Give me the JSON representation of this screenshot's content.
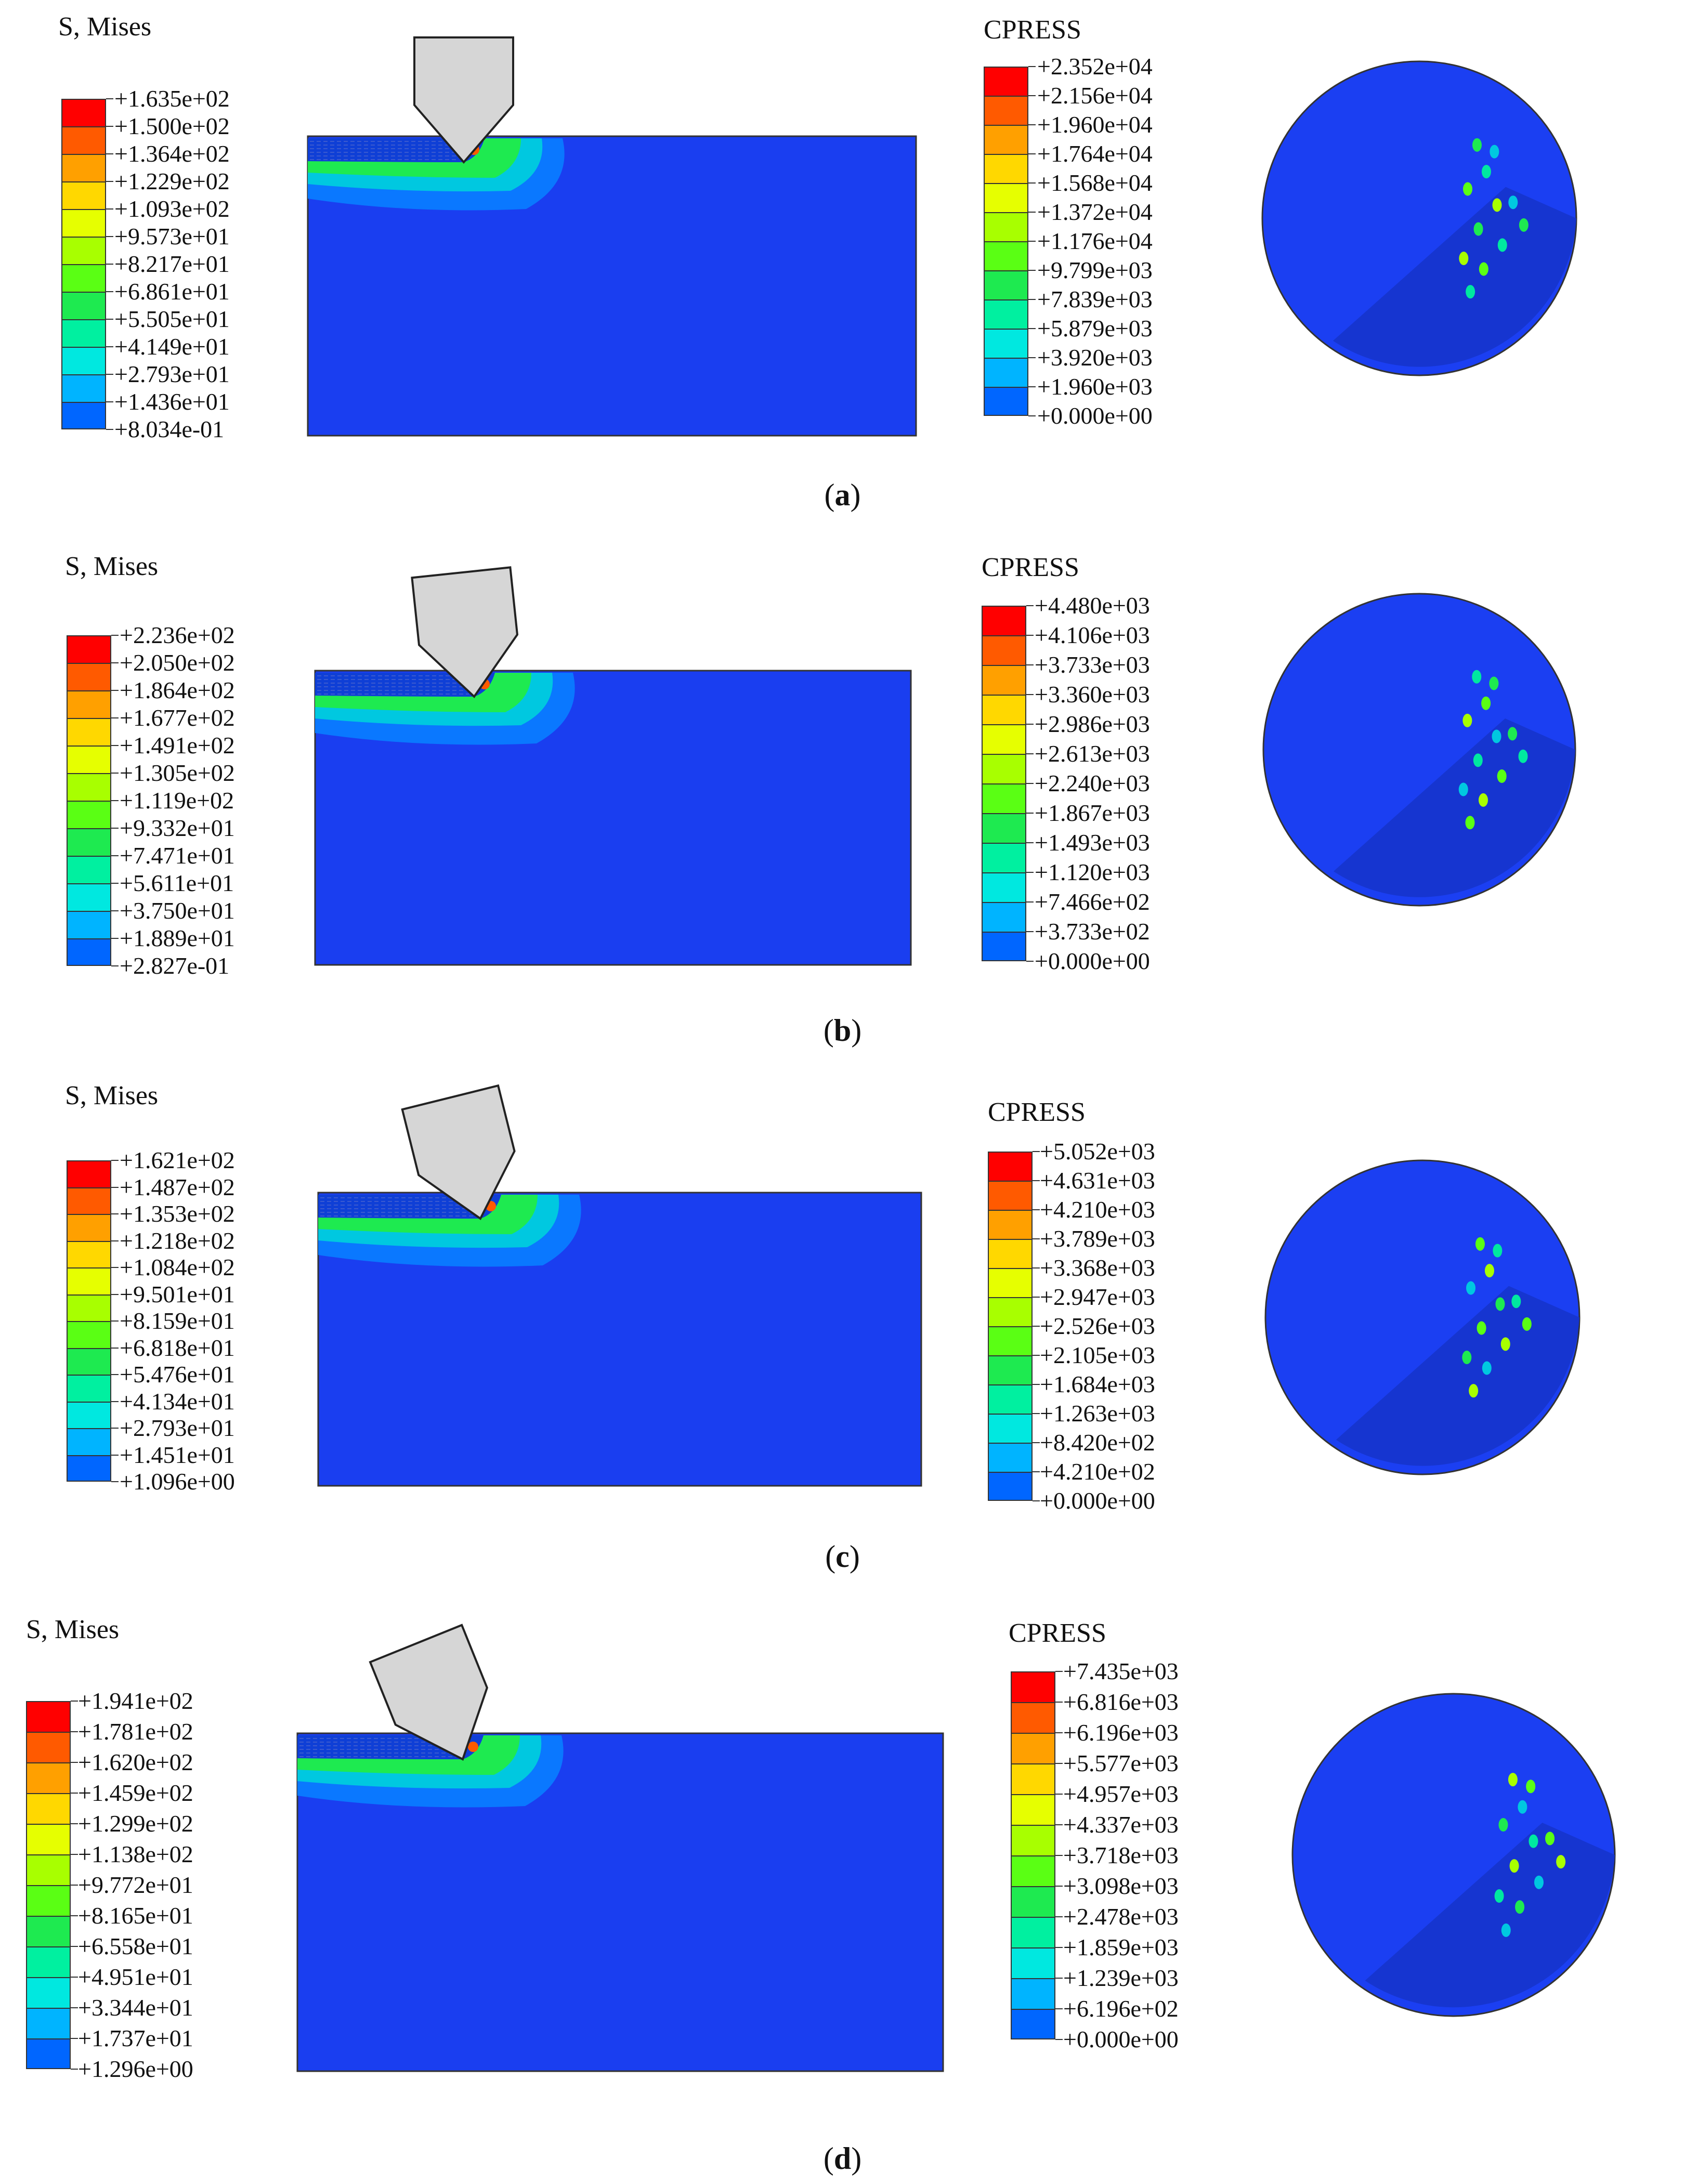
{
  "panels": [
    {
      "caption": "a",
      "stress_legend": {
        "title": "S, Mises",
        "values": [
          "+1.635e+02",
          "+1.500e+02",
          "+1.364e+02",
          "+1.229e+02",
          "+1.093e+02",
          "+9.573e+01",
          "+8.217e+01",
          "+6.861e+01",
          "+5.505e+01",
          "+4.149e+01",
          "+2.793e+01",
          "+1.436e+01",
          "+8.034e-01"
        ]
      },
      "pressure_legend": {
        "title": "CPRESS",
        "values": [
          "+2.352e+04",
          "+2.156e+04",
          "+1.960e+04",
          "+1.764e+04",
          "+1.568e+04",
          "+1.372e+04",
          "+1.176e+04",
          "+9.799e+03",
          "+7.839e+03",
          "+5.879e+03",
          "+3.920e+03",
          "+1.960e+03",
          "+0.000e+00"
        ]
      }
    },
    {
      "caption": "b",
      "stress_legend": {
        "title": "S, Mises",
        "values": [
          "+2.236e+02",
          "+2.050e+02",
          "+1.864e+02",
          "+1.677e+02",
          "+1.491e+02",
          "+1.305e+02",
          "+1.119e+02",
          "+9.332e+01",
          "+7.471e+01",
          "+5.611e+01",
          "+3.750e+01",
          "+1.889e+01",
          "+2.827e-01"
        ]
      },
      "pressure_legend": {
        "title": "CPRESS",
        "values": [
          "+4.480e+03",
          "+4.106e+03",
          "+3.733e+03",
          "+3.360e+03",
          "+2.986e+03",
          "+2.613e+03",
          "+2.240e+03",
          "+1.867e+03",
          "+1.493e+03",
          "+1.120e+03",
          "+7.466e+02",
          "+3.733e+02",
          "+0.000e+00"
        ]
      }
    },
    {
      "caption": "c",
      "stress_legend": {
        "title": "S, Mises",
        "values": [
          "+1.621e+02",
          "+1.487e+02",
          "+1.353e+02",
          "+1.218e+02",
          "+1.084e+02",
          "+9.501e+01",
          "+8.159e+01",
          "+6.818e+01",
          "+5.476e+01",
          "+4.134e+01",
          "+2.793e+01",
          "+1.451e+01",
          "+1.096e+00"
        ]
      },
      "pressure_legend": {
        "title": "CPRESS",
        "values": [
          "+5.052e+03",
          "+4.631e+03",
          "+4.210e+03",
          "+3.789e+03",
          "+3.368e+03",
          "+2.947e+03",
          "+2.526e+03",
          "+2.105e+03",
          "+1.684e+03",
          "+1.263e+03",
          "+8.420e+02",
          "+4.210e+02",
          "+0.000e+00"
        ]
      }
    },
    {
      "caption": "d",
      "stress_legend": {
        "title": "S, Mises",
        "values": [
          "+1.941e+02",
          "+1.781e+02",
          "+1.620e+02",
          "+1.459e+02",
          "+1.299e+02",
          "+1.138e+02",
          "+9.772e+01",
          "+8.165e+01",
          "+6.558e+01",
          "+4.951e+01",
          "+3.344e+01",
          "+1.737e+01",
          "+1.296e+00"
        ]
      },
      "pressure_legend": {
        "title": "CPRESS",
        "values": [
          "+7.435e+03",
          "+6.816e+03",
          "+6.196e+03",
          "+5.577e+03",
          "+4.957e+03",
          "+4.337e+03",
          "+3.718e+03",
          "+3.098e+03",
          "+2.478e+03",
          "+1.859e+03",
          "+1.239e+03",
          "+6.196e+02",
          "+0.000e+00"
        ]
      }
    }
  ],
  "colors": {
    "contour_scale": [
      "#ff0000",
      "#ff5a00",
      "#ffa000",
      "#ffd800",
      "#e6ff00",
      "#a8ff00",
      "#5aff14",
      "#1eea50",
      "#00f0a0",
      "#00e8e0",
      "#00b4ff",
      "#0066ff",
      "#0022ff"
    ],
    "model_blue": "#1a3ef0",
    "tool_gray": "#d6d6d6"
  }
}
